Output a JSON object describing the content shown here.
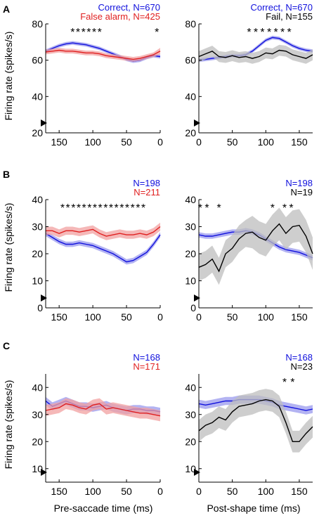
{
  "figure": {
    "ylabel": "Firing rate (spikes/s)",
    "xlabel_left": "Pre-saccade time (ms)",
    "xlabel_right": "Post-shape time (ms)",
    "colors": {
      "correct": "#1010dd",
      "false_alarm": "#e02020",
      "fail": "#000000"
    }
  },
  "chart_data": [
    {
      "panel": "A",
      "side": "left",
      "type": "line",
      "xlim": [
        170,
        0
      ],
      "ylim": [
        20,
        80
      ],
      "xticks": [
        150,
        100,
        50,
        0
      ],
      "yticks": [
        20,
        40,
        60,
        80
      ],
      "legend": [
        {
          "text": "Correct, N=670",
          "color": "#1010dd"
        },
        {
          "text": "False alarm, N=425",
          "color": "#e02020"
        }
      ],
      "stars": [
        130,
        122,
        114,
        106,
        98,
        90,
        5
      ],
      "series": [
        {
          "color": "#1010dd",
          "fill": "#9999ee",
          "x": [
            170,
            160,
            150,
            140,
            130,
            120,
            110,
            100,
            90,
            80,
            70,
            60,
            50,
            40,
            30,
            20,
            10,
            0
          ],
          "y": [
            65,
            66.5,
            68,
            69,
            69.5,
            69,
            68.5,
            67.5,
            66.5,
            65,
            63.5,
            62,
            60.5,
            59.5,
            60,
            61.5,
            62.5,
            62
          ],
          "err": [
            1,
            1,
            1,
            1,
            1,
            1,
            1,
            1,
            1,
            1,
            1,
            1,
            1,
            1,
            1,
            1,
            1,
            1
          ]
        },
        {
          "color": "#e02020",
          "fill": "#f2a0a0",
          "x": [
            170,
            160,
            150,
            140,
            130,
            120,
            110,
            100,
            90,
            80,
            70,
            60,
            50,
            40,
            30,
            20,
            10,
            0
          ],
          "y": [
            64.5,
            65,
            65.5,
            65,
            65,
            64.5,
            64,
            64,
            63.5,
            62.5,
            62,
            61.5,
            61,
            60.5,
            61,
            62,
            63,
            65
          ],
          "err": [
            1.3,
            1.3,
            1.3,
            1.3,
            1.3,
            1.3,
            1.3,
            1.3,
            1.3,
            1.3,
            1.3,
            1.3,
            1.3,
            1.3,
            1.3,
            1.3,
            1.3,
            1.8
          ]
        }
      ]
    },
    {
      "panel": "A",
      "side": "right",
      "type": "line",
      "xlim": [
        0,
        170
      ],
      "ylim": [
        20,
        80
      ],
      "xticks": [
        0,
        50,
        100,
        150
      ],
      "yticks": [
        20,
        40,
        60,
        80
      ],
      "legend": [
        {
          "text": "Correct, N=670",
          "color": "#1010dd"
        },
        {
          "text": "Fail, N=155",
          "color": "#000000"
        }
      ],
      "stars": [
        75,
        85,
        95,
        105,
        115,
        125,
        135
      ],
      "series": [
        {
          "color": "#1010dd",
          "fill": "#9999ee",
          "x": [
            0,
            10,
            20,
            30,
            40,
            50,
            60,
            70,
            80,
            90,
            100,
            110,
            120,
            130,
            140,
            150,
            160,
            170
          ],
          "y": [
            60,
            60.5,
            61,
            61.5,
            62,
            62.5,
            62.5,
            63,
            65,
            68,
            71,
            72.5,
            72,
            70,
            68,
            66.5,
            65.5,
            65
          ],
          "err": [
            1,
            1,
            1,
            1,
            1,
            1,
            1,
            1,
            1,
            1,
            1,
            1,
            1,
            1,
            1,
            1,
            1,
            1
          ]
        },
        {
          "color": "#000000",
          "fill": "#bdbdbd",
          "x": [
            0,
            10,
            20,
            30,
            40,
            50,
            60,
            70,
            80,
            90,
            100,
            110,
            120,
            130,
            140,
            150,
            160,
            170
          ],
          "y": [
            62,
            63.5,
            65,
            62,
            61.5,
            62.5,
            61.5,
            62,
            61,
            62,
            64,
            63.5,
            65.5,
            65,
            63,
            62,
            61,
            63
          ],
          "err": [
            3,
            3,
            3,
            3,
            3,
            3,
            3,
            3,
            3,
            3,
            3,
            3,
            3,
            3,
            3,
            3,
            3,
            3
          ]
        }
      ]
    },
    {
      "panel": "B",
      "side": "left",
      "type": "line",
      "xlim": [
        170,
        0
      ],
      "ylim": [
        0,
        40
      ],
      "xticks": [
        150,
        100,
        50,
        0
      ],
      "yticks": [
        0,
        10,
        20,
        30,
        40
      ],
      "legend": [
        {
          "text": "N=198",
          "color": "#1010dd"
        },
        {
          "text": "N=211",
          "color": "#e02020"
        }
      ],
      "stars": [
        145,
        137,
        129,
        121,
        113,
        105,
        97,
        89,
        81,
        73,
        65,
        57,
        49,
        41,
        33,
        25
      ],
      "series": [
        {
          "color": "#1010dd",
          "fill": "#9999ee",
          "x": [
            170,
            160,
            150,
            140,
            130,
            120,
            110,
            100,
            90,
            80,
            70,
            60,
            50,
            40,
            30,
            20,
            10,
            0
          ],
          "y": [
            27.5,
            26,
            24.5,
            23.5,
            23.5,
            24,
            23.5,
            23,
            22,
            21,
            20,
            18.5,
            17,
            17.5,
            19,
            20.5,
            23.5,
            27
          ],
          "err": [
            1,
            1,
            1,
            1,
            1,
            1,
            1,
            1,
            1,
            1,
            1,
            1,
            1,
            1,
            1,
            1,
            1,
            1
          ]
        },
        {
          "color": "#e02020",
          "fill": "#f2a0a0",
          "x": [
            170,
            160,
            150,
            140,
            130,
            120,
            110,
            100,
            90,
            80,
            70,
            60,
            50,
            40,
            30,
            20,
            10,
            0
          ],
          "y": [
            28.5,
            28.5,
            27.5,
            28.5,
            28.5,
            28,
            28.5,
            29,
            27.5,
            26.5,
            27,
            27.5,
            27,
            27,
            27.5,
            27,
            28,
            30
          ],
          "err": [
            1.5,
            1.5,
            1.5,
            1.5,
            1.5,
            1.5,
            1.5,
            1.5,
            1.5,
            1.5,
            1.5,
            1.5,
            1.5,
            1.5,
            1.5,
            1.5,
            1.5,
            1.5
          ]
        }
      ]
    },
    {
      "panel": "B",
      "side": "right",
      "type": "line",
      "xlim": [
        0,
        170
      ],
      "ylim": [
        0,
        40
      ],
      "xticks": [
        0,
        50,
        100,
        150
      ],
      "yticks": [
        0,
        10,
        20,
        30,
        40
      ],
      "legend": [
        {
          "text": "N=198",
          "color": "#1010dd"
        },
        {
          "text": "N=19",
          "color": "#000000"
        }
      ],
      "stars": [
        2,
        12,
        30,
        110,
        128,
        138
      ],
      "series": [
        {
          "color": "#1010dd",
          "fill": "#9999ee",
          "x": [
            0,
            10,
            20,
            30,
            40,
            50,
            60,
            70,
            80,
            90,
            100,
            110,
            120,
            130,
            140,
            150,
            160,
            170
          ],
          "y": [
            27,
            26.5,
            26.5,
            27,
            27.5,
            28,
            28,
            28.5,
            28,
            27,
            25.5,
            24,
            22.5,
            21.5,
            21,
            20.5,
            19.5,
            18.5
          ],
          "err": [
            1,
            1,
            1,
            1,
            1,
            1,
            1,
            1,
            1,
            1,
            1,
            1,
            1,
            1,
            1,
            1,
            1,
            1
          ]
        },
        {
          "color": "#000000",
          "fill": "#bdbdbd",
          "x": [
            0,
            10,
            20,
            30,
            40,
            50,
            60,
            70,
            80,
            90,
            100,
            110,
            120,
            130,
            140,
            150,
            160,
            170
          ],
          "y": [
            15,
            16,
            18,
            13.5,
            20,
            22,
            25.5,
            27.5,
            28,
            26,
            25,
            28.5,
            31,
            27.5,
            30,
            30.5,
            26.5,
            20
          ],
          "err": [
            5,
            5,
            5,
            5,
            5,
            5,
            5,
            5,
            6,
            6,
            6,
            6,
            6,
            6,
            6,
            6,
            6,
            6
          ]
        }
      ]
    },
    {
      "panel": "C",
      "side": "left",
      "type": "line",
      "xlim": [
        170,
        0
      ],
      "ylim": [
        5,
        45
      ],
      "xticks": [
        150,
        100,
        50,
        0
      ],
      "yticks": [
        10,
        20,
        30,
        40
      ],
      "legend": [
        {
          "text": "N=168",
          "color": "#1010dd"
        },
        {
          "text": "N=171",
          "color": "#e02020"
        }
      ],
      "stars": [],
      "series": [
        {
          "color": "#1010dd",
          "fill": "#9999ee",
          "x": [
            170,
            160,
            150,
            140,
            130,
            120,
            110,
            100,
            90,
            80,
            70,
            60,
            50,
            40,
            30,
            20,
            10,
            0
          ],
          "y": [
            35,
            33,
            34,
            35,
            34,
            33,
            33,
            32.5,
            33,
            33.5,
            32.5,
            32,
            31.5,
            32,
            32,
            31.5,
            31.5,
            31
          ],
          "err": [
            1.5,
            1.5,
            1.5,
            1.5,
            1.5,
            1.5,
            1.5,
            1.5,
            1.5,
            1.5,
            1.5,
            1.5,
            1.5,
            1.5,
            1.5,
            1.5,
            1.5,
            1.5
          ]
        },
        {
          "color": "#e02020",
          "fill": "#f2a0a0",
          "x": [
            170,
            160,
            150,
            140,
            130,
            120,
            110,
            100,
            90,
            80,
            70,
            60,
            50,
            40,
            30,
            20,
            10,
            0
          ],
          "y": [
            31.5,
            32,
            32.5,
            34,
            33.5,
            32.5,
            32,
            33.5,
            34,
            32,
            32.5,
            32,
            31.5,
            31,
            30.5,
            30.5,
            30,
            29.5
          ],
          "err": [
            2,
            2,
            2,
            2,
            2,
            2,
            2,
            2,
            2,
            2,
            2,
            2,
            2,
            2,
            2,
            2,
            2,
            2
          ]
        }
      ]
    },
    {
      "panel": "C",
      "side": "right",
      "type": "line",
      "xlim": [
        0,
        170
      ],
      "ylim": [
        5,
        45
      ],
      "xticks": [
        0,
        50,
        100,
        150
      ],
      "yticks": [
        10,
        20,
        30,
        40
      ],
      "legend": [
        {
          "text": "N=168",
          "color": "#1010dd"
        },
        {
          "text": "N=23",
          "color": "#000000"
        }
      ],
      "stars": [
        128,
        140
      ],
      "series": [
        {
          "color": "#1010dd",
          "fill": "#9999ee",
          "x": [
            0,
            10,
            20,
            30,
            40,
            50,
            60,
            70,
            80,
            90,
            100,
            110,
            120,
            130,
            140,
            150,
            160,
            170
          ],
          "y": [
            34,
            33.5,
            34,
            34.5,
            35,
            35,
            35.5,
            35.5,
            35.5,
            35.5,
            35,
            34.5,
            33.5,
            33,
            32.5,
            32,
            31.5,
            32
          ],
          "err": [
            1.5,
            1.5,
            1.5,
            1.5,
            1.5,
            1.5,
            1.5,
            1.5,
            1.5,
            1.5,
            1.5,
            1.5,
            1.5,
            1.5,
            1.5,
            1.5,
            1.5,
            1.5
          ]
        },
        {
          "color": "#000000",
          "fill": "#bdbdbd",
          "x": [
            0,
            10,
            20,
            30,
            40,
            50,
            60,
            70,
            80,
            90,
            100,
            110,
            120,
            130,
            140,
            150,
            160,
            170
          ],
          "y": [
            24,
            26,
            27,
            29,
            28,
            31,
            33,
            33.5,
            34,
            35,
            35.5,
            35,
            33,
            27,
            20,
            20,
            23,
            25.5
          ],
          "err": [
            4,
            4,
            4,
            4,
            4,
            4,
            4,
            4,
            4,
            4,
            4,
            4,
            4,
            4,
            4,
            4,
            4,
            4
          ]
        }
      ]
    }
  ]
}
